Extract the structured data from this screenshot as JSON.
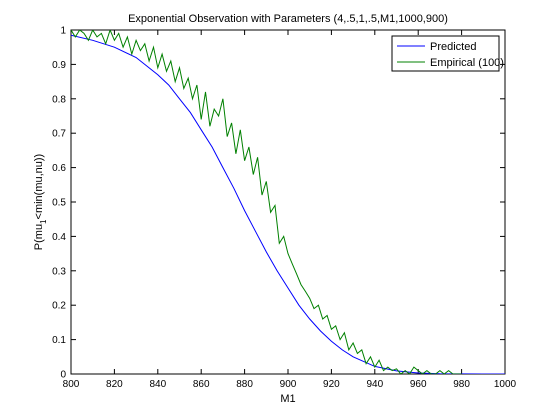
{
  "chart_data": {
    "type": "line",
    "title": "Exponential Observation with Parameters (4,.5,1,.5,M1,1000,900)",
    "xlabel": "M1",
    "ylabel_main": "P(mu",
    "ylabel_sub": "1",
    "ylabel_rest": "<min(mu,nu))",
    "xlim": [
      800,
      1000
    ],
    "ylim": [
      0,
      1
    ],
    "x_ticks": [
      800,
      820,
      840,
      860,
      880,
      900,
      920,
      940,
      960,
      980,
      1000
    ],
    "y_ticks": [
      0,
      0.1,
      0.2,
      0.3,
      0.4,
      0.5,
      0.6,
      0.7,
      0.8,
      0.9,
      1
    ],
    "x_tick_labels": [
      "800",
      "820",
      "840",
      "860",
      "880",
      "900",
      "920",
      "940",
      "960",
      "980",
      "1000"
    ],
    "y_tick_labels": [
      "0",
      "0.1",
      "0.2",
      "0.3",
      "0.4",
      "0.5",
      "0.6",
      "0.7",
      "0.8",
      "0.9",
      "1"
    ],
    "grid": false,
    "legend_position": "top-right",
    "series": [
      {
        "name": "Predicted",
        "color": "#0000ff",
        "x": [
          800,
          810,
          820,
          830,
          840,
          845,
          850,
          855,
          860,
          865,
          870,
          875,
          880,
          885,
          890,
          895,
          900,
          905,
          910,
          915,
          920,
          925,
          930,
          940,
          950,
          960,
          970,
          980,
          990,
          1000
        ],
        "y": [
          0.985,
          0.97,
          0.95,
          0.92,
          0.87,
          0.84,
          0.8,
          0.76,
          0.71,
          0.66,
          0.6,
          0.54,
          0.475,
          0.415,
          0.355,
          0.3,
          0.25,
          0.2,
          0.16,
          0.125,
          0.095,
          0.07,
          0.05,
          0.022,
          0.009,
          0.003,
          0.001,
          0.0002,
          0.0,
          0.0
        ]
      },
      {
        "name": "Empirical (100)",
        "color": "#008000",
        "x": [
          800,
          802,
          804,
          806,
          808,
          810,
          812,
          814,
          816,
          818,
          820,
          822,
          824,
          826,
          828,
          830,
          832,
          834,
          836,
          838,
          840,
          842,
          844,
          846,
          848,
          850,
          852,
          854,
          856,
          858,
          860,
          862,
          864,
          866,
          868,
          870,
          872,
          874,
          876,
          878,
          880,
          882,
          884,
          886,
          888,
          890,
          892,
          894,
          896,
          898,
          900,
          902,
          904,
          906,
          908,
          910,
          912,
          914,
          916,
          918,
          920,
          922,
          924,
          926,
          928,
          930,
          932,
          934,
          936,
          938,
          940,
          942,
          944,
          946,
          948,
          950,
          952,
          954,
          956,
          958,
          960,
          962,
          964,
          966,
          968,
          970,
          972,
          974,
          976,
          978,
          980
        ],
        "y": [
          1.0,
          0.98,
          1.0,
          0.99,
          0.97,
          1.0,
          0.98,
          0.99,
          0.96,
          1.0,
          0.97,
          0.99,
          0.95,
          0.98,
          0.93,
          0.97,
          0.94,
          0.96,
          0.91,
          0.95,
          0.89,
          0.93,
          0.88,
          0.91,
          0.85,
          0.89,
          0.83,
          0.86,
          0.8,
          0.84,
          0.74,
          0.82,
          0.72,
          0.77,
          0.75,
          0.8,
          0.69,
          0.73,
          0.64,
          0.71,
          0.62,
          0.66,
          0.58,
          0.63,
          0.52,
          0.56,
          0.47,
          0.49,
          0.38,
          0.4,
          0.35,
          0.32,
          0.29,
          0.26,
          0.24,
          0.22,
          0.19,
          0.2,
          0.16,
          0.17,
          0.13,
          0.14,
          0.1,
          0.12,
          0.07,
          0.09,
          0.06,
          0.07,
          0.03,
          0.05,
          0.02,
          0.04,
          0.01,
          0.02,
          0.01,
          0.015,
          0.0,
          0.01,
          0.0,
          0.02,
          0.01,
          0.0,
          0.01,
          0.0,
          0.0,
          0.01,
          0.0,
          0.01,
          0.0,
          0.0,
          0.0
        ]
      }
    ]
  }
}
